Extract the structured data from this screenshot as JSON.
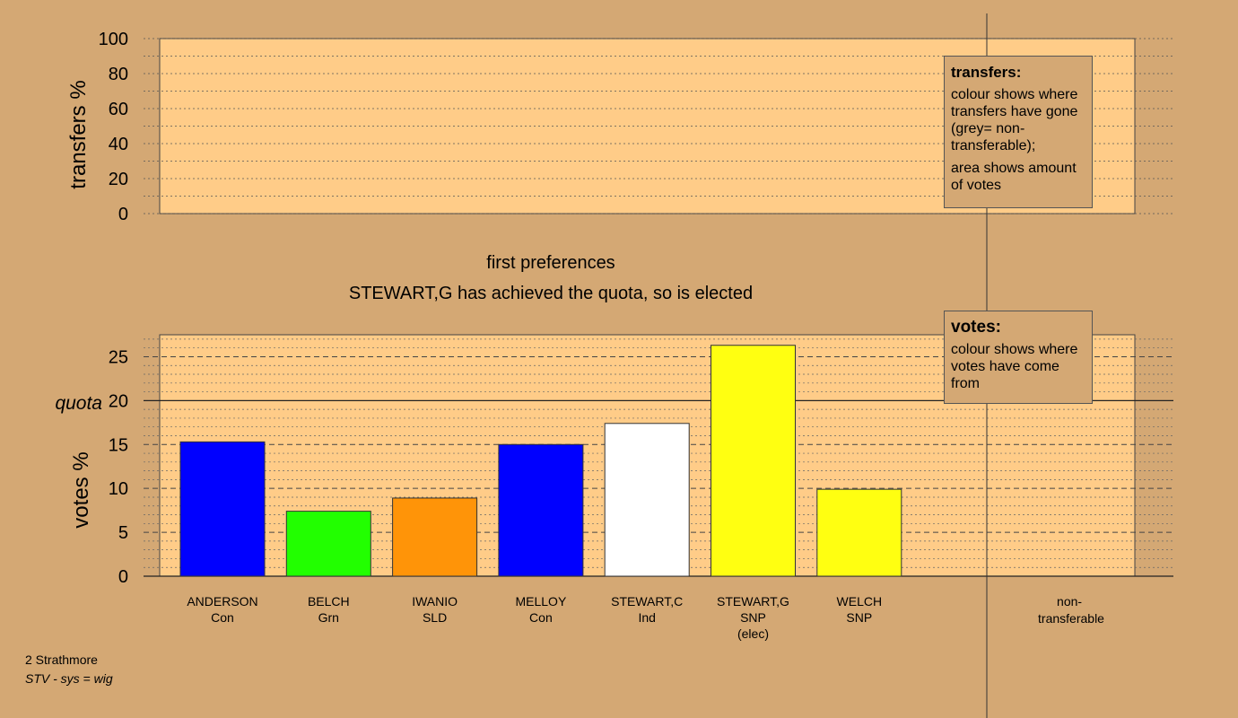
{
  "stage_title": "first preferences",
  "stage_message": "STEWART,G has achieved the quota, so is elected",
  "transfers_legend": {
    "title": "transfers:",
    "line1": "colour shows where transfers have gone (grey= non-transferable);",
    "line2": "area shows amount of votes"
  },
  "votes_legend": {
    "title": "votes:",
    "line1": "colour shows where votes have come from"
  },
  "footer": {
    "constituency": "2 Strathmore",
    "system": "STV - sys = wig"
  },
  "chart_data": [
    {
      "type": "bar",
      "ylabel": "transfers %",
      "ylim": [
        0,
        100
      ],
      "yticks": [
        0,
        20,
        40,
        60,
        80,
        100
      ],
      "values": [],
      "grid": true
    },
    {
      "type": "bar",
      "ylabel": "votes %",
      "ylim": [
        0,
        27.5
      ],
      "yticks": [
        0,
        5,
        10,
        15,
        20,
        25
      ],
      "quota_label": "quota",
      "quota": 20,
      "categories": [
        {
          "name": "ANDERSON",
          "party": "Con",
          "note": ""
        },
        {
          "name": "BELCH",
          "party": "Grn",
          "note": ""
        },
        {
          "name": "IWANIO",
          "party": "SLD",
          "note": ""
        },
        {
          "name": "MELLOY",
          "party": "Con",
          "note": ""
        },
        {
          "name": "STEWART,C",
          "party": "Ind",
          "note": ""
        },
        {
          "name": "STEWART,G",
          "party": "SNP",
          "note": "(elec)"
        },
        {
          "name": "WELCH",
          "party": "SNP",
          "note": ""
        }
      ],
      "values": [
        15.3,
        7.4,
        8.9,
        15.0,
        17.4,
        26.3,
        9.9
      ],
      "colors": [
        "#0000FF",
        "#22FF00",
        "#FF9408",
        "#0000FF",
        "#FFFFFF",
        "#FFFF11",
        "#FFFF11"
      ],
      "nontransferable_label": "non-transferable",
      "grid": true
    }
  ]
}
